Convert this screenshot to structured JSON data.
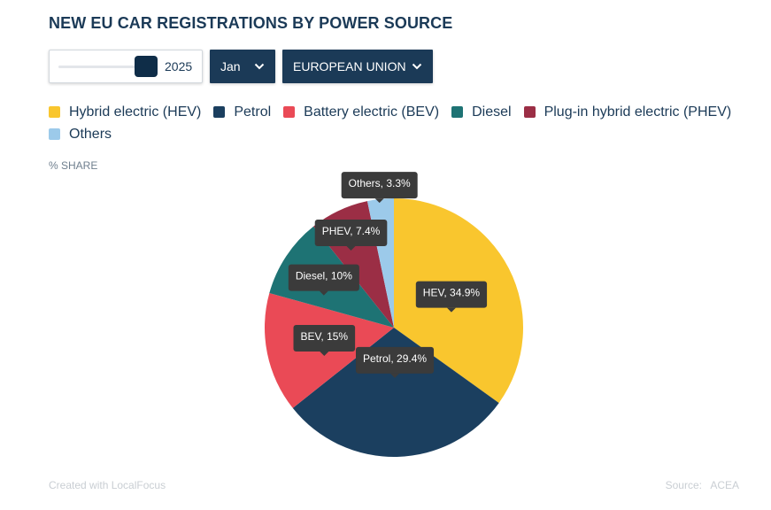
{
  "title": "NEW EU CAR REGISTRATIONS BY POWER SOURCE",
  "controls": {
    "year_value": "2025",
    "year_level": 1.0,
    "month": "Jan",
    "region": "EUROPEAN UNION"
  },
  "unit_label": "% SHARE",
  "colors": {
    "HEV": "#f9c62e",
    "Petrol": "#1b3f5f",
    "BEV": "#ea4a56",
    "Diesel": "#1e7374",
    "PHEV": "#9b2e45",
    "Others": "#9ccaea",
    "tooltip": "#3b3b3b"
  },
  "chart_data": {
    "type": "pie",
    "title": "NEW EU CAR REGISTRATIONS BY POWER SOURCE",
    "unit": "% SHARE",
    "legend_position": "top",
    "categories": [
      "Hybrid electric (HEV)",
      "Petrol",
      "Battery electric (BEV)",
      "Diesel",
      "Plug-in hybrid electric (PHEV)",
      "Others"
    ],
    "short_labels": [
      "HEV",
      "Petrol",
      "BEV",
      "Diesel",
      "PHEV",
      "Others"
    ],
    "values": [
      34.9,
      29.4,
      15,
      10,
      7.4,
      3.3
    ],
    "data_labels": [
      "HEV, 34.9%",
      "Petrol, 29.4%",
      "BEV, 15%",
      "Diesel, 10%",
      "PHEV, 7.4%",
      "Others, 3.3%"
    ]
  },
  "footer": {
    "credit": "Created with LocalFocus",
    "source_label": "Source:",
    "source_value": "ACEA"
  }
}
